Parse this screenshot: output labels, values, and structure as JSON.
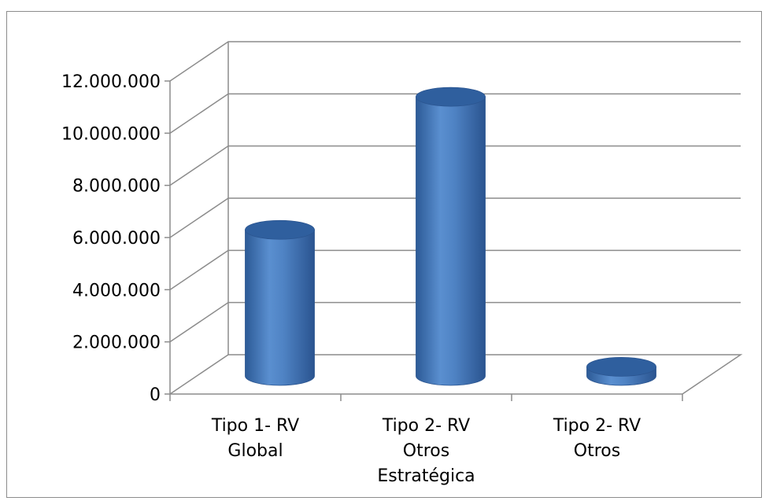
{
  "chart_data": {
    "type": "bar",
    "style": "3d-cylinder",
    "categories": [
      [
        "Tipo 1-  RV",
        "Global"
      ],
      [
        "Tipo 2-  RV",
        "Otros",
        "Estratégica"
      ],
      [
        "Tipo 2-  RV",
        "Otros"
      ]
    ],
    "values": [
      5600000,
      10700000,
      350000
    ],
    "y_ticks": [
      "0",
      "2.000.000",
      "4.000.000",
      "6.000.000",
      "8.000.000",
      "10.000.000",
      "12.000.000"
    ],
    "y_tick_values": [
      0,
      2000000,
      4000000,
      6000000,
      8000000,
      10000000,
      12000000
    ],
    "ylim": [
      0,
      12000000
    ],
    "grid": true,
    "legend": "none",
    "bar_color": "#4a7ebb",
    "bar_top_color": "#2f5f9e",
    "gridline_color": "#8c8c8c"
  }
}
